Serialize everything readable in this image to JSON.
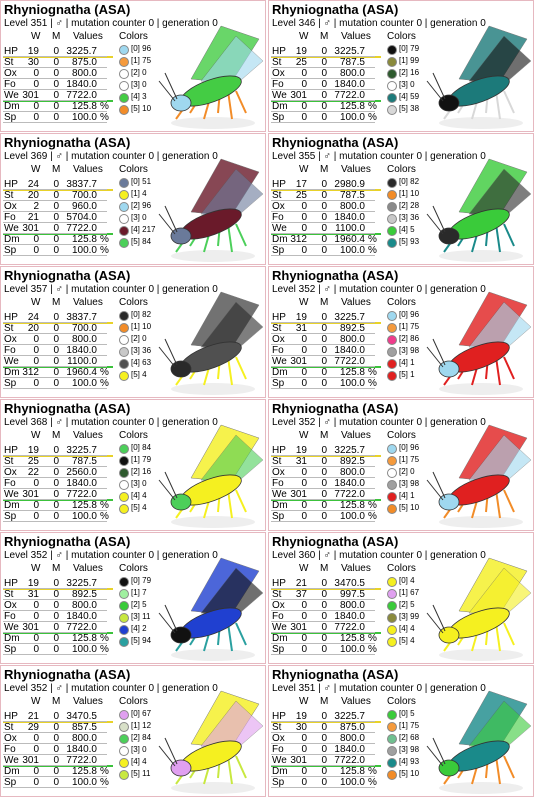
{
  "headers": {
    "w": "W",
    "m": "M",
    "values": "Values",
    "colors": "Colors"
  },
  "stat_names": [
    "HP",
    "St",
    "Ox",
    "Fo",
    "We",
    "Dm",
    "Sp"
  ],
  "cards": [
    {
      "title": "Rhyniognatha (ASA)",
      "level_line": "Level 351 | ♂ | mutation counter 0 | generation 0",
      "stats": [
        {
          "w": "19",
          "m": "0",
          "value": "3225.7"
        },
        {
          "w": "30",
          "m": "0",
          "value": "875.0"
        },
        {
          "w": "0",
          "m": "0",
          "value": "800.0"
        },
        {
          "w": "0",
          "m": "0",
          "value": "1840.0"
        },
        {
          "w": "301",
          "m": "0",
          "value": "7722.0"
        },
        {
          "w": "0",
          "m": "0",
          "value": "125.8",
          "unit": "%"
        },
        {
          "w": "0",
          "m": "0",
          "value": "100.0",
          "unit": "%"
        }
      ],
      "colors": [
        {
          "label": "[0] 96",
          "color": "#9fd8ef"
        },
        {
          "label": "[1] 75",
          "color": "#f59a3c"
        },
        {
          "label": "[2] 0",
          "color": "#ffffff"
        },
        {
          "label": "[3] 0",
          "color": "#ffffff"
        },
        {
          "label": "[4] 3",
          "color": "#44cc44"
        },
        {
          "label": "[5] 10",
          "color": "#f28c28"
        }
      ]
    },
    {
      "title": "Rhyniognatha (ASA)",
      "level_line": "Level 346 | ♂ | mutation counter 0 | generation 0",
      "stats": [
        {
          "w": "19",
          "m": "0",
          "value": "3225.7"
        },
        {
          "w": "25",
          "m": "0",
          "value": "787.5"
        },
        {
          "w": "0",
          "m": "0",
          "value": "800.0"
        },
        {
          "w": "0",
          "m": "0",
          "value": "1840.0"
        },
        {
          "w": "301",
          "m": "0",
          "value": "7722.0"
        },
        {
          "w": "0",
          "m": "0",
          "value": "125.8",
          "unit": "%"
        },
        {
          "w": "0",
          "m": "0",
          "value": "100.0",
          "unit": "%"
        }
      ],
      "colors": [
        {
          "label": "[0] 79",
          "color": "#111111"
        },
        {
          "label": "[1] 99",
          "color": "#8a8a3c"
        },
        {
          "label": "[2] 16",
          "color": "#2e5a2e"
        },
        {
          "label": "[3] 0",
          "color": "#ffffff"
        },
        {
          "label": "[4] 59",
          "color": "#1c7a7a"
        },
        {
          "label": "[5] 38",
          "color": "#d8d8d8"
        }
      ]
    },
    {
      "title": "Rhyniognatha (ASA)",
      "level_line": "Level 369 | ♂ | mutation counter 0 | generation 0",
      "stats": [
        {
          "w": "24",
          "m": "0",
          "value": "3837.7"
        },
        {
          "w": "20",
          "m": "0",
          "value": "700.0"
        },
        {
          "w": "2",
          "m": "0",
          "value": "960.0"
        },
        {
          "w": "21",
          "m": "0",
          "value": "5704.0"
        },
        {
          "w": "301",
          "m": "0",
          "value": "7722.0"
        },
        {
          "w": "0",
          "m": "0",
          "value": "125.8",
          "unit": "%"
        },
        {
          "w": "0",
          "m": "0",
          "value": "100.0",
          "unit": "%"
        }
      ],
      "colors": [
        {
          "label": "[0] 51",
          "color": "#6a7a9a"
        },
        {
          "label": "[1] 4",
          "color": "#f5f020"
        },
        {
          "label": "[2] 96",
          "color": "#9fd8ef"
        },
        {
          "label": "[3] 0",
          "color": "#ffffff"
        },
        {
          "label": "[4] 217",
          "color": "#6a1a2a"
        },
        {
          "label": "[5] 84",
          "color": "#4ccf5a"
        }
      ]
    },
    {
      "title": "Rhyniognatha (ASA)",
      "level_line": "Level 355 | ♂ | mutation counter 0 | generation 0",
      "stats": [
        {
          "w": "17",
          "m": "0",
          "value": "2980.9"
        },
        {
          "w": "25",
          "m": "0",
          "value": "787.5"
        },
        {
          "w": "0",
          "m": "0",
          "value": "800.0"
        },
        {
          "w": "0",
          "m": "0",
          "value": "1840.0"
        },
        {
          "w": "0",
          "m": "0",
          "value": "1100.0"
        },
        {
          "w": "312",
          "m": "0",
          "value": "1960.4",
          "unit": "%"
        },
        {
          "w": "0",
          "m": "0",
          "value": "100.0",
          "unit": "%"
        }
      ],
      "colors": [
        {
          "label": "[0] 82",
          "color": "#2a2a2a"
        },
        {
          "label": "[1] 10",
          "color": "#f28c28"
        },
        {
          "label": "[2] 28",
          "color": "#8a8a8a"
        },
        {
          "label": "[3] 36",
          "color": "#c8c8c8"
        },
        {
          "label": "[4] 5",
          "color": "#3acb3a"
        },
        {
          "label": "[5] 93",
          "color": "#1a8a8a"
        }
      ]
    },
    {
      "title": "Rhyniognatha (ASA)",
      "level_line": "Level 357 | ♂ | mutation counter 0 | generation 0",
      "stats": [
        {
          "w": "24",
          "m": "0",
          "value": "3837.7"
        },
        {
          "w": "20",
          "m": "0",
          "value": "700.0"
        },
        {
          "w": "0",
          "m": "0",
          "value": "800.0"
        },
        {
          "w": "0",
          "m": "0",
          "value": "1840.0"
        },
        {
          "w": "0",
          "m": "0",
          "value": "1100.0"
        },
        {
          "w": "312",
          "m": "0",
          "value": "1960.4",
          "unit": "%"
        },
        {
          "w": "0",
          "m": "0",
          "value": "100.0",
          "unit": "%"
        }
      ],
      "colors": [
        {
          "label": "[0] 82",
          "color": "#2a2a2a"
        },
        {
          "label": "[1] 10",
          "color": "#f28c28"
        },
        {
          "label": "[2] 0",
          "color": "#ffffff"
        },
        {
          "label": "[3] 36",
          "color": "#c8c8c8"
        },
        {
          "label": "[4] 63",
          "color": "#505050"
        },
        {
          "label": "[5] 4",
          "color": "#f5f020"
        }
      ]
    },
    {
      "title": "Rhyniognatha (ASA)",
      "level_line": "Level 352 | ♂ | mutation counter 0 | generation 0",
      "stats": [
        {
          "w": "19",
          "m": "0",
          "value": "3225.7"
        },
        {
          "w": "31",
          "m": "0",
          "value": "892.5"
        },
        {
          "w": "0",
          "m": "0",
          "value": "800.0"
        },
        {
          "w": "0",
          "m": "0",
          "value": "1840.0"
        },
        {
          "w": "301",
          "m": "0",
          "value": "7722.0"
        },
        {
          "w": "0",
          "m": "0",
          "value": "125.8",
          "unit": "%"
        },
        {
          "w": "0",
          "m": "0",
          "value": "100.0",
          "unit": "%"
        }
      ],
      "colors": [
        {
          "label": "[0] 96",
          "color": "#9fd8ef"
        },
        {
          "label": "[1] 75",
          "color": "#f59a3c"
        },
        {
          "label": "[2] 86",
          "color": "#f03c8c"
        },
        {
          "label": "[3] 98",
          "color": "#a0a0a0"
        },
        {
          "label": "[4] 1",
          "color": "#e02020"
        },
        {
          "label": "[5] 1",
          "color": "#e02020"
        }
      ]
    },
    {
      "title": "Rhyniognatha (ASA)",
      "level_line": "Level 368 | ♂ | mutation counter 0 | generation 0",
      "stats": [
        {
          "w": "19",
          "m": "0",
          "value": "3225.7"
        },
        {
          "w": "25",
          "m": "0",
          "value": "787.5"
        },
        {
          "w": "22",
          "m": "0",
          "value": "2560.0"
        },
        {
          "w": "0",
          "m": "0",
          "value": "1840.0"
        },
        {
          "w": "301",
          "m": "0",
          "value": "7722.0"
        },
        {
          "w": "0",
          "m": "0",
          "value": "125.8",
          "unit": "%"
        },
        {
          "w": "0",
          "m": "0",
          "value": "100.0",
          "unit": "%"
        }
      ],
      "colors": [
        {
          "label": "[0] 84",
          "color": "#4ccf5a"
        },
        {
          "label": "[1] 79",
          "color": "#111111"
        },
        {
          "label": "[2] 16",
          "color": "#2e5a2e"
        },
        {
          "label": "[3] 0",
          "color": "#ffffff"
        },
        {
          "label": "[4] 4",
          "color": "#f5f020"
        },
        {
          "label": "[5] 4",
          "color": "#f5f020"
        }
      ]
    },
    {
      "title": "Rhyniognatha (ASA)",
      "level_line": "Level 352 | ♂ | mutation counter 0 | generation 0",
      "stats": [
        {
          "w": "19",
          "m": "0",
          "value": "3225.7"
        },
        {
          "w": "31",
          "m": "0",
          "value": "892.5"
        },
        {
          "w": "0",
          "m": "0",
          "value": "800.0"
        },
        {
          "w": "0",
          "m": "0",
          "value": "1840.0"
        },
        {
          "w": "301",
          "m": "0",
          "value": "7722.0"
        },
        {
          "w": "0",
          "m": "0",
          "value": "125.8",
          "unit": "%"
        },
        {
          "w": "0",
          "m": "0",
          "value": "100.0",
          "unit": "%"
        }
      ],
      "colors": [
        {
          "label": "[0] 96",
          "color": "#9fd8ef"
        },
        {
          "label": "[1] 75",
          "color": "#f59a3c"
        },
        {
          "label": "[2] 0",
          "color": "#ffffff"
        },
        {
          "label": "[3] 98",
          "color": "#a0a0a0"
        },
        {
          "label": "[4] 1",
          "color": "#e02020"
        },
        {
          "label": "[5] 10",
          "color": "#f28c28"
        }
      ]
    },
    {
      "title": "Rhyniognatha (ASA)",
      "level_line": "Level 352 | ♂ | mutation counter 0 | generation 0",
      "stats": [
        {
          "w": "19",
          "m": "0",
          "value": "3225.7"
        },
        {
          "w": "31",
          "m": "0",
          "value": "892.5"
        },
        {
          "w": "0",
          "m": "0",
          "value": "800.0"
        },
        {
          "w": "0",
          "m": "0",
          "value": "1840.0"
        },
        {
          "w": "301",
          "m": "0",
          "value": "7722.0"
        },
        {
          "w": "0",
          "m": "0",
          "value": "125.8",
          "unit": "%"
        },
        {
          "w": "0",
          "m": "0",
          "value": "100.0",
          "unit": "%"
        }
      ],
      "colors": [
        {
          "label": "[0] 79",
          "color": "#111111"
        },
        {
          "label": "[1] 7",
          "color": "#a0f0a0"
        },
        {
          "label": "[2] 5",
          "color": "#3acb3a"
        },
        {
          "label": "[3] 11",
          "color": "#c8e840"
        },
        {
          "label": "[4] 2",
          "color": "#2040d0"
        },
        {
          "label": "[5] 94",
          "color": "#2aa0a0"
        }
      ]
    },
    {
      "title": "Rhyniognatha (ASA)",
      "level_line": "Level 360 | ♂ | mutation counter 0 | generation 0",
      "stats": [
        {
          "w": "21",
          "m": "0",
          "value": "3470.5"
        },
        {
          "w": "37",
          "m": "0",
          "value": "997.5"
        },
        {
          "w": "0",
          "m": "0",
          "value": "800.0"
        },
        {
          "w": "0",
          "m": "0",
          "value": "1840.0"
        },
        {
          "w": "301",
          "m": "0",
          "value": "7722.0"
        },
        {
          "w": "0",
          "m": "0",
          "value": "125.8",
          "unit": "%"
        },
        {
          "w": "0",
          "m": "0",
          "value": "100.0",
          "unit": "%"
        }
      ],
      "colors": [
        {
          "label": "[0] 4",
          "color": "#f5f020"
        },
        {
          "label": "[1] 67",
          "color": "#e0a0f0"
        },
        {
          "label": "[2] 5",
          "color": "#3acb3a"
        },
        {
          "label": "[3] 99",
          "color": "#8a8a3c"
        },
        {
          "label": "[4] 4",
          "color": "#f5f020"
        },
        {
          "label": "[5] 4",
          "color": "#f5f020"
        }
      ]
    },
    {
      "title": "Rhyniognatha (ASA)",
      "level_line": "Level 352 | ♂ | mutation counter 0 | generation 0",
      "stats": [
        {
          "w": "21",
          "m": "0",
          "value": "3470.5"
        },
        {
          "w": "29",
          "m": "0",
          "value": "857.5"
        },
        {
          "w": "0",
          "m": "0",
          "value": "800.0"
        },
        {
          "w": "0",
          "m": "0",
          "value": "1840.0"
        },
        {
          "w": "301",
          "m": "0",
          "value": "7722.0"
        },
        {
          "w": "0",
          "m": "0",
          "value": "125.8",
          "unit": "%"
        },
        {
          "w": "0",
          "m": "0",
          "value": "100.0",
          "unit": "%"
        }
      ],
      "colors": [
        {
          "label": "[0] 67",
          "color": "#e0a0f0"
        },
        {
          "label": "[1] 12",
          "color": "#d8e0c8"
        },
        {
          "label": "[2] 84",
          "color": "#4ccf5a"
        },
        {
          "label": "[3] 0",
          "color": "#ffffff"
        },
        {
          "label": "[4] 4",
          "color": "#f5f020"
        },
        {
          "label": "[5] 11",
          "color": "#c8e840"
        }
      ]
    },
    {
      "title": "Rhyniognatha (ASA)",
      "level_line": "Level 351 | ♂ | mutation counter 0 | generation 0",
      "stats": [
        {
          "w": "19",
          "m": "0",
          "value": "3225.7"
        },
        {
          "w": "30",
          "m": "0",
          "value": "875.0"
        },
        {
          "w": "0",
          "m": "0",
          "value": "800.0"
        },
        {
          "w": "0",
          "m": "0",
          "value": "1840.0"
        },
        {
          "w": "301",
          "m": "0",
          "value": "7722.0"
        },
        {
          "w": "0",
          "m": "0",
          "value": "125.8",
          "unit": "%"
        },
        {
          "w": "0",
          "m": "0",
          "value": "100.0",
          "unit": "%"
        }
      ],
      "colors": [
        {
          "label": "[0] 5",
          "color": "#3acb3a"
        },
        {
          "label": "[1] 75",
          "color": "#f59a3c"
        },
        {
          "label": "[2] 68",
          "color": "#70c090"
        },
        {
          "label": "[3] 98",
          "color": "#a0a0a0"
        },
        {
          "label": "[4] 93",
          "color": "#1a8a8a"
        },
        {
          "label": "[5] 10",
          "color": "#f28c28"
        }
      ]
    }
  ]
}
